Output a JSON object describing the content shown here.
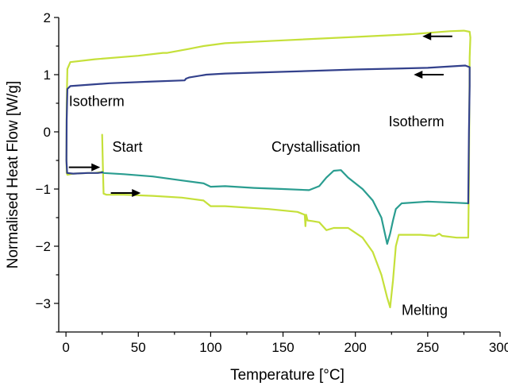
{
  "chart_data": {
    "type": "line",
    "xlabel": "Temperature [°C]",
    "ylabel": "Normalised Heat Flow [W/g]",
    "xlim": [
      -5,
      300
    ],
    "ylim": [
      -3.5,
      2
    ],
    "xticks": [
      0,
      50,
      100,
      150,
      200,
      250,
      300
    ],
    "yticks": [
      -3,
      -2,
      -1,
      0,
      1,
      2
    ],
    "grid": false,
    "legend": "none",
    "annotations": [
      {
        "text": "Isotherm",
        "x": 2,
        "y": 0.45
      },
      {
        "text": "Isotherm",
        "x": 223,
        "y": 0.1
      },
      {
        "text": "Start",
        "x": 32,
        "y": -0.35
      },
      {
        "text": "Crystallisation",
        "x": 142,
        "y": -0.35
      },
      {
        "text": "Melting",
        "x": 232,
        "y": -3.2
      }
    ],
    "arrows": [
      {
        "x1": 2,
        "x2": 22,
        "y": -0.62,
        "direction": "right"
      },
      {
        "x1": 31,
        "x2": 50,
        "y": -1.07,
        "direction": "right"
      },
      {
        "x1": 267,
        "x2": 248,
        "y": 1.67,
        "direction": "left"
      },
      {
        "x1": 261,
        "x2": 242,
        "y": 1.0,
        "direction": "left"
      }
    ],
    "series": [
      {
        "color": "#c5e03a",
        "points": [
          [
            25,
            -0.05
          ],
          [
            25.5,
            -0.6
          ],
          [
            26,
            -1.08
          ],
          [
            28,
            -1.1
          ],
          [
            40,
            -1.1
          ],
          [
            60,
            -1.12
          ],
          [
            80,
            -1.15
          ],
          [
            95,
            -1.2
          ],
          [
            100,
            -1.3
          ],
          [
            110,
            -1.3
          ],
          [
            140,
            -1.35
          ],
          [
            160,
            -1.4
          ],
          [
            165,
            -1.45
          ],
          [
            165.5,
            -1.65
          ],
          [
            166,
            -1.45
          ],
          [
            167,
            -1.55
          ],
          [
            170,
            -1.56
          ],
          [
            175,
            -1.58
          ],
          [
            180,
            -1.72
          ],
          [
            185,
            -1.68
          ],
          [
            195,
            -1.68
          ],
          [
            205,
            -1.85
          ],
          [
            212,
            -2.1
          ],
          [
            218,
            -2.5
          ],
          [
            222,
            -2.9
          ],
          [
            224,
            -3.07
          ],
          [
            226,
            -2.6
          ],
          [
            228,
            -2.0
          ],
          [
            230,
            -1.8
          ],
          [
            245,
            -1.8
          ],
          [
            255,
            -1.82
          ],
          [
            258,
            -1.78
          ],
          [
            260,
            -1.82
          ],
          [
            270,
            -1.85
          ],
          [
            278,
            -1.85
          ],
          [
            278.5,
            -0.8
          ],
          [
            279,
            1.3
          ],
          [
            279.5,
            1.65
          ],
          [
            279,
            1.75
          ],
          [
            275,
            1.77
          ],
          [
            265,
            1.76
          ],
          [
            240,
            1.71
          ],
          [
            200,
            1.66
          ],
          [
            150,
            1.6
          ],
          [
            110,
            1.55
          ],
          [
            95,
            1.5
          ],
          [
            85,
            1.45
          ],
          [
            70,
            1.38
          ],
          [
            67,
            1.38
          ],
          [
            50,
            1.33
          ],
          [
            20,
            1.27
          ],
          [
            3,
            1.22
          ],
          [
            1,
            1.1
          ],
          [
            0.5,
            0.5
          ],
          [
            0.3,
            -0.45
          ],
          [
            0.5,
            -0.72
          ],
          [
            1,
            -0.75
          ],
          [
            5,
            -0.73
          ],
          [
            15,
            -0.72
          ],
          [
            20,
            -0.72
          ],
          [
            25,
            -0.7
          ]
        ]
      },
      {
        "color": "#2a9d90",
        "points": [
          [
            25,
            -0.7
          ],
          [
            26,
            -0.72
          ],
          [
            40,
            -0.74
          ],
          [
            60,
            -0.78
          ],
          [
            80,
            -0.85
          ],
          [
            95,
            -0.9
          ],
          [
            100,
            -0.96
          ],
          [
            110,
            -0.95
          ],
          [
            130,
            -0.98
          ],
          [
            150,
            -1.0
          ],
          [
            168,
            -1.02
          ],
          [
            175,
            -0.95
          ],
          [
            180,
            -0.8
          ],
          [
            185,
            -0.68
          ],
          [
            190,
            -0.67
          ],
          [
            195,
            -0.8
          ],
          [
            205,
            -1.0
          ],
          [
            212,
            -1.2
          ],
          [
            218,
            -1.5
          ],
          [
            222,
            -1.96
          ],
          [
            224,
            -1.78
          ],
          [
            226,
            -1.55
          ],
          [
            228,
            -1.35
          ],
          [
            232,
            -1.25
          ],
          [
            250,
            -1.22
          ],
          [
            270,
            -1.24
          ],
          [
            278,
            -1.25
          ]
        ]
      },
      {
        "color": "#33418c",
        "points": [
          [
            278,
            -1.25
          ],
          [
            278.5,
            0
          ],
          [
            279,
            0.8
          ],
          [
            279,
            1.13
          ],
          [
            276,
            1.16
          ],
          [
            250,
            1.12
          ],
          [
            200,
            1.09
          ],
          [
            150,
            1.05
          ],
          [
            110,
            1.02
          ],
          [
            97,
            1.0
          ],
          [
            85,
            0.95
          ],
          [
            83,
            0.93
          ],
          [
            82,
            0.9
          ],
          [
            60,
            0.88
          ],
          [
            30,
            0.85
          ],
          [
            3,
            0.8
          ],
          [
            1,
            0.75
          ],
          [
            0.5,
            0.2
          ],
          [
            0.3,
            -0.5
          ],
          [
            0.8,
            -0.72
          ],
          [
            5,
            -0.73
          ],
          [
            15,
            -0.72
          ],
          [
            22,
            -0.72
          ],
          [
            25,
            -0.71
          ]
        ]
      }
    ]
  }
}
